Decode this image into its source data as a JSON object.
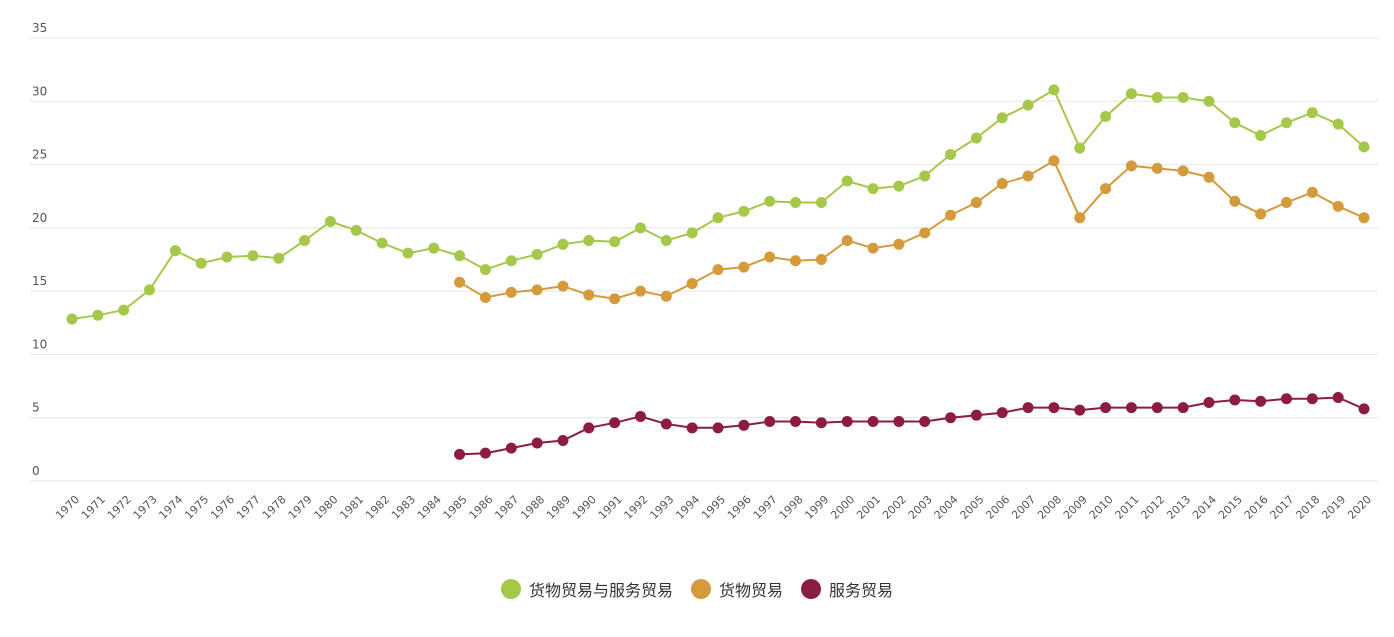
{
  "chart_data": {
    "type": "line",
    "title": "",
    "xlabel": "",
    "ylabel": "",
    "ylim": [
      0,
      35
    ],
    "yticks": [
      0,
      5,
      10,
      15,
      20,
      25,
      30,
      35
    ],
    "grid": true,
    "legend_position": "bottom",
    "x": [
      "1970",
      "1971",
      "1972",
      "1973",
      "1974",
      "1975",
      "1976",
      "1977",
      "1978",
      "1979",
      "1980",
      "1981",
      "1982",
      "1983",
      "1984",
      "1985",
      "1986",
      "1987",
      "1988",
      "1989",
      "1990",
      "1991",
      "1992",
      "1993",
      "1994",
      "1995",
      "1996",
      "1997",
      "1998",
      "1999",
      "2000",
      "2001",
      "2002",
      "2003",
      "2004",
      "2005",
      "2006",
      "2007",
      "2008",
      "2009",
      "2010",
      "2011",
      "2012",
      "2013",
      "2014",
      "2015",
      "2016",
      "2017",
      "2018",
      "2019",
      "2020"
    ],
    "series": [
      {
        "name": "货物贸易与服务贸易",
        "color": "#a6c84a",
        "values": [
          12.8,
          13.1,
          13.5,
          15.1,
          18.2,
          17.2,
          17.7,
          17.8,
          17.6,
          19.0,
          20.5,
          19.8,
          18.8,
          18.0,
          18.4,
          17.8,
          16.7,
          17.4,
          17.9,
          18.7,
          19.0,
          18.9,
          20.0,
          19.0,
          19.6,
          20.8,
          21.3,
          22.1,
          22.0,
          22.0,
          23.7,
          23.1,
          23.3,
          24.1,
          25.8,
          27.1,
          28.7,
          29.7,
          30.9,
          26.3,
          28.8,
          30.6,
          30.3,
          30.3,
          30.0,
          28.3,
          27.3,
          28.3,
          29.1,
          28.2,
          26.4
        ]
      },
      {
        "name": "货物贸易",
        "color": "#d49a3b",
        "values": [
          null,
          null,
          null,
          null,
          null,
          null,
          null,
          null,
          null,
          null,
          null,
          null,
          null,
          null,
          null,
          15.7,
          14.5,
          14.9,
          15.1,
          15.4,
          14.7,
          14.4,
          15.0,
          14.6,
          15.6,
          16.7,
          16.9,
          17.7,
          17.4,
          17.5,
          19.0,
          18.4,
          18.7,
          19.6,
          21.0,
          22.0,
          23.5,
          24.1,
          25.3,
          20.8,
          23.1,
          24.9,
          24.7,
          24.5,
          24.0,
          22.1,
          21.1,
          22.0,
          22.8,
          21.7,
          20.8
        ]
      },
      {
        "name": "服务贸易",
        "color": "#8c1c44",
        "values": [
          null,
          null,
          null,
          null,
          null,
          null,
          null,
          null,
          null,
          null,
          null,
          null,
          null,
          null,
          null,
          2.1,
          2.2,
          2.6,
          3.0,
          3.2,
          4.2,
          4.6,
          5.1,
          4.5,
          4.2,
          4.2,
          4.4,
          4.7,
          4.7,
          4.6,
          4.7,
          4.7,
          4.7,
          4.7,
          5.0,
          5.2,
          5.4,
          5.8,
          5.8,
          5.6,
          5.8,
          5.8,
          5.8,
          5.8,
          6.2,
          6.4,
          6.3,
          6.5,
          6.5,
          6.6,
          5.7
        ]
      }
    ]
  }
}
